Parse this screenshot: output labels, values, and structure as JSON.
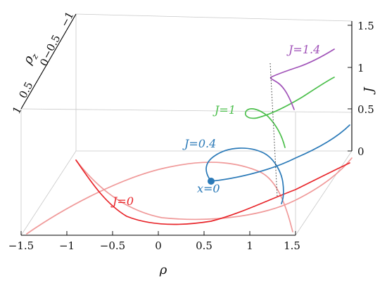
{
  "chart_data": {
    "type": "line",
    "projection": "3d",
    "title": "",
    "axes": {
      "x": {
        "label": "ρ",
        "range": [
          -1.5,
          1.5
        ],
        "ticks": [
          "−1.5",
          "−1",
          "−0.5",
          "0",
          "0.5",
          "1",
          "1.5"
        ]
      },
      "y": {
        "label": "ρz",
        "label_main": "ρ",
        "label_sub": "z",
        "range": [
          -1,
          1
        ],
        "ticks": [
          "−1",
          "−0.5",
          "0",
          "0.5",
          "1"
        ]
      },
      "z": {
        "label": "J",
        "range": [
          0,
          1.5
        ],
        "ticks": [
          "0",
          "0.5",
          "1",
          "1.5"
        ]
      }
    },
    "grid": false,
    "series": [
      {
        "name": "J=0",
        "J": 0,
        "color": "#e8252a",
        "color_light": "#f09a9a"
      },
      {
        "name": "J=0.4",
        "J": 0.4,
        "color": "#2b7ab8"
      },
      {
        "name": "J=1",
        "J": 1,
        "color": "#4cbf4c"
      },
      {
        "name": "J=1.4",
        "J": 1.4,
        "color": "#a052b8"
      }
    ],
    "annotations": [
      {
        "text": "x=0",
        "color": "#2b7ab8",
        "marker": "point on J=0.4 curve at ρ≈0.6"
      }
    ]
  }
}
